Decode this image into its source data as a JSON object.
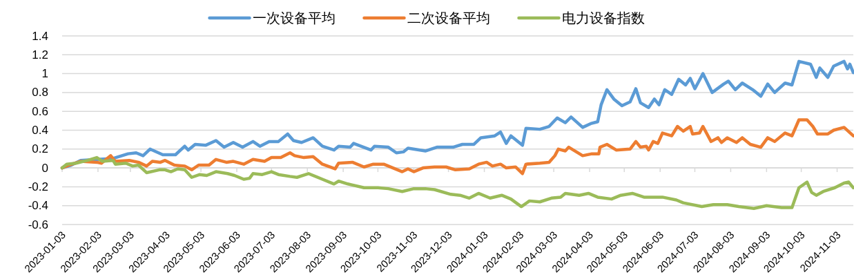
{
  "chart_data": {
    "type": "line",
    "ylim": [
      -0.6,
      1.4
    ],
    "yticks": [
      -0.6,
      -0.4,
      -0.2,
      0,
      0.2,
      0.4,
      0.6,
      0.8,
      1,
      1.2,
      1.4
    ],
    "xlim": [
      "2023-01-03",
      "2024-11-17"
    ],
    "xticks": [
      "2023-01-03",
      "2023-02-03",
      "2023-03-03",
      "2023-04-03",
      "2023-05-03",
      "2023-06-03",
      "2023-07-03",
      "2023-08-03",
      "2023-09-03",
      "2023-10-03",
      "2023-11-03",
      "2023-12-03",
      "2024-01-03",
      "2024-02-03",
      "2024-03-03",
      "2024-04-03",
      "2024-05-03",
      "2024-06-03",
      "2024-07-03",
      "2024-08-03",
      "2024-09-03",
      "2024-10-03",
      "2024-11-03"
    ],
    "grid": "y",
    "legend": "top",
    "line_style": "solid",
    "marker": "none",
    "series": [
      {
        "name": "一次设备平均",
        "color": "#5b9bd5",
        "x": [
          "2023-01-03",
          "2023-01-11",
          "2023-01-19",
          "2023-02-02",
          "2023-02-16",
          "2023-03-01",
          "2023-03-08",
          "2023-03-14",
          "2023-03-20",
          "2023-03-31",
          "2023-04-11",
          "2023-04-19",
          "2023-04-22",
          "2023-04-28",
          "2023-05-07",
          "2023-05-16",
          "2023-05-23",
          "2023-05-31",
          "2023-06-08",
          "2023-06-17",
          "2023-06-23",
          "2023-07-01",
          "2023-07-09",
          "2023-07-17",
          "2023-07-22",
          "2023-07-29",
          "2023-08-08",
          "2023-08-16",
          "2023-08-26",
          "2023-08-30",
          "2023-09-09",
          "2023-09-12",
          "2023-09-27",
          "2023-09-30",
          "2023-10-12",
          "2023-10-19",
          "2023-10-25",
          "2023-10-29",
          "2023-11-13",
          "2023-11-23",
          "2023-12-07",
          "2023-12-15",
          "2023-12-25",
          "2023-12-31",
          "2024-01-12",
          "2024-01-17",
          "2024-01-22",
          "2024-01-26",
          "2024-02-05",
          "2024-02-08",
          "2024-02-20",
          "2024-02-28",
          "2024-03-06",
          "2024-03-13",
          "2024-03-18",
          "2024-03-28",
          "2024-04-04",
          "2024-04-10",
          "2024-04-13",
          "2024-04-18",
          "2024-04-24",
          "2024-05-01",
          "2024-05-08",
          "2024-05-13",
          "2024-05-17",
          "2024-05-24",
          "2024-05-29",
          "2024-06-02",
          "2024-06-07",
          "2024-06-13",
          "2024-06-19",
          "2024-06-25",
          "2024-06-29",
          "2024-07-03",
          "2024-07-10",
          "2024-07-18",
          "2024-07-28",
          "2024-08-01",
          "2024-08-07",
          "2024-08-13",
          "2024-08-22",
          "2024-08-29",
          "2024-09-04",
          "2024-09-10",
          "2024-09-19",
          "2024-09-25",
          "2024-10-01",
          "2024-10-11",
          "2024-10-16",
          "2024-10-19",
          "2024-10-26",
          "2024-10-31",
          "2024-11-09",
          "2024-11-12",
          "2024-11-14",
          "2024-11-17"
        ],
        "values": [
          0,
          0.03,
          0.08,
          0.09,
          0.1,
          0.15,
          0.16,
          0.13,
          0.2,
          0.14,
          0.14,
          0.23,
          0.19,
          0.25,
          0.24,
          0.29,
          0.22,
          0.27,
          0.22,
          0.28,
          0.23,
          0.28,
          0.28,
          0.36,
          0.29,
          0.27,
          0.32,
          0.23,
          0.19,
          0.23,
          0.22,
          0.26,
          0.19,
          0.23,
          0.22,
          0.16,
          0.17,
          0.21,
          0.18,
          0.22,
          0.22,
          0.25,
          0.25,
          0.32,
          0.34,
          0.38,
          0.26,
          0.34,
          0.24,
          0.42,
          0.41,
          0.44,
          0.53,
          0.48,
          0.54,
          0.43,
          0.47,
          0.49,
          0.67,
          0.83,
          0.73,
          0.66,
          0.7,
          0.84,
          0.69,
          0.64,
          0.73,
          0.67,
          0.83,
          0.78,
          0.94,
          0.88,
          0.95,
          0.84,
          1.0,
          0.8,
          0.89,
          0.92,
          0.83,
          0.9,
          0.83,
          0.76,
          0.89,
          0.8,
          0.9,
          0.88,
          1.13,
          1.1,
          0.96,
          1.06,
          0.96,
          1.08,
          1.13,
          1.05,
          1.1,
          1.01
        ]
      },
      {
        "name": "二次设备平均",
        "color": "#ed7d31",
        "x": [
          "2023-01-03",
          "2023-01-09",
          "2023-01-19",
          "2023-02-02",
          "2023-02-06",
          "2023-02-14",
          "2023-02-18",
          "2023-03-02",
          "2023-03-10",
          "2023-03-17",
          "2023-03-22",
          "2023-03-29",
          "2023-04-02",
          "2023-04-10",
          "2023-04-19",
          "2023-04-25",
          "2023-05-01",
          "2023-05-10",
          "2023-05-16",
          "2023-05-25",
          "2023-05-31",
          "2023-06-09",
          "2023-06-17",
          "2023-06-27",
          "2023-07-03",
          "2023-07-11",
          "2023-07-19",
          "2023-07-23",
          "2023-07-31",
          "2023-08-08",
          "2023-08-16",
          "2023-08-27",
          "2023-08-30",
          "2023-09-11",
          "2023-09-21",
          "2023-09-29",
          "2023-10-08",
          "2023-10-16",
          "2023-10-24",
          "2023-10-29",
          "2023-11-03",
          "2023-11-11",
          "2023-11-21",
          "2023-12-01",
          "2023-12-09",
          "2023-12-21",
          "2023-12-29",
          "2024-01-05",
          "2024-01-10",
          "2024-01-17",
          "2024-01-22",
          "2024-01-30",
          "2024-02-05",
          "2024-02-08",
          "2024-02-20",
          "2024-02-28",
          "2024-03-04",
          "2024-03-07",
          "2024-03-13",
          "2024-03-16",
          "2024-03-28",
          "2024-04-05",
          "2024-04-11",
          "2024-04-12",
          "2024-04-18",
          "2024-04-26",
          "2024-05-08",
          "2024-05-13",
          "2024-05-17",
          "2024-05-22",
          "2024-05-24",
          "2024-05-28",
          "2024-06-01",
          "2024-06-05",
          "2024-06-13",
          "2024-06-18",
          "2024-06-23",
          "2024-06-29",
          "2024-07-01",
          "2024-07-07",
          "2024-07-10",
          "2024-07-17",
          "2024-07-23",
          "2024-07-26",
          "2024-07-31",
          "2024-08-08",
          "2024-08-13",
          "2024-08-20",
          "2024-08-29",
          "2024-09-04",
          "2024-09-10",
          "2024-09-19",
          "2024-09-25",
          "2024-10-01",
          "2024-10-08",
          "2024-10-13",
          "2024-10-17",
          "2024-10-26",
          "2024-10-31",
          "2024-11-09",
          "2024-11-17"
        ],
        "values": [
          0,
          0.03,
          0.07,
          0.06,
          0.05,
          0.13,
          0.07,
          0.08,
          0.06,
          0.02,
          0.07,
          0.06,
          0.08,
          0.03,
          0.02,
          -0.02,
          0.03,
          0.03,
          0.09,
          0.06,
          0.07,
          0.04,
          0.09,
          0.07,
          0.11,
          0.11,
          0.16,
          0.13,
          0.11,
          0.12,
          0.04,
          -0.01,
          0.05,
          0.06,
          0.01,
          0.04,
          0.04,
          0.0,
          -0.04,
          -0.01,
          -0.04,
          0.0,
          0.01,
          0.01,
          -0.02,
          -0.01,
          0.04,
          0.06,
          0.02,
          0.04,
          0.0,
          0.01,
          -0.06,
          0.04,
          0.05,
          0.06,
          0.13,
          0.2,
          0.18,
          0.22,
          0.13,
          0.15,
          0.15,
          0.22,
          0.25,
          0.19,
          0.2,
          0.28,
          0.22,
          0.23,
          0.19,
          0.28,
          0.26,
          0.37,
          0.34,
          0.44,
          0.39,
          0.44,
          0.36,
          0.37,
          0.44,
          0.28,
          0.32,
          0.27,
          0.32,
          0.27,
          0.32,
          0.25,
          0.22,
          0.32,
          0.28,
          0.37,
          0.34,
          0.51,
          0.51,
          0.44,
          0.36,
          0.36,
          0.4,
          0.43,
          0.34
        ]
      },
      {
        "name": "电力设备指数",
        "color": "#9bbb59",
        "x": [
          "2023-01-03",
          "2023-01-07",
          "2023-01-15",
          "2023-01-25",
          "2023-02-02",
          "2023-02-07",
          "2023-02-16",
          "2023-02-18",
          "2023-02-27",
          "2023-03-05",
          "2023-03-10",
          "2023-03-17",
          "2023-03-28",
          "2023-04-02",
          "2023-04-07",
          "2023-04-13",
          "2023-04-19",
          "2023-04-25",
          "2023-05-02",
          "2023-05-08",
          "2023-05-16",
          "2023-05-26",
          "2023-06-01",
          "2023-06-09",
          "2023-06-14",
          "2023-06-17",
          "2023-06-25",
          "2023-07-03",
          "2023-07-09",
          "2023-07-19",
          "2023-07-25",
          "2023-08-04",
          "2023-08-16",
          "2023-08-26",
          "2023-08-30",
          "2023-09-07",
          "2023-09-21",
          "2023-10-03",
          "2023-10-12",
          "2023-10-24",
          "2023-11-03",
          "2023-11-13",
          "2023-11-21",
          "2023-12-05",
          "2023-12-13",
          "2023-12-21",
          "2023-12-29",
          "2024-01-08",
          "2024-01-18",
          "2024-01-26",
          "2024-02-04",
          "2024-02-11",
          "2024-02-20",
          "2024-03-01",
          "2024-03-09",
          "2024-03-13",
          "2024-03-25",
          "2024-04-02",
          "2024-04-10",
          "2024-04-22",
          "2024-04-30",
          "2024-05-10",
          "2024-05-20",
          "2024-06-05",
          "2024-06-17",
          "2024-06-23",
          "2024-07-09",
          "2024-07-19",
          "2024-07-31",
          "2024-08-10",
          "2024-08-23",
          "2024-09-03",
          "2024-09-16",
          "2024-09-25",
          "2024-10-01",
          "2024-10-08",
          "2024-10-12",
          "2024-10-16",
          "2024-10-22",
          "2024-11-01",
          "2024-11-09",
          "2024-11-13",
          "2024-11-17"
        ],
        "values": [
          0,
          0.04,
          0.05,
          0.08,
          0.11,
          0.07,
          0.08,
          0.04,
          0.05,
          0.02,
          0.03,
          -0.05,
          -0.02,
          -0.02,
          -0.04,
          -0.01,
          -0.02,
          -0.1,
          -0.07,
          -0.08,
          -0.04,
          -0.06,
          -0.08,
          -0.12,
          -0.11,
          -0.06,
          -0.07,
          -0.04,
          -0.07,
          -0.09,
          -0.1,
          -0.06,
          -0.12,
          -0.17,
          -0.14,
          -0.17,
          -0.21,
          -0.21,
          -0.22,
          -0.25,
          -0.22,
          -0.22,
          -0.23,
          -0.28,
          -0.29,
          -0.32,
          -0.27,
          -0.32,
          -0.29,
          -0.33,
          -0.41,
          -0.35,
          -0.36,
          -0.32,
          -0.31,
          -0.27,
          -0.29,
          -0.27,
          -0.31,
          -0.33,
          -0.29,
          -0.27,
          -0.31,
          -0.31,
          -0.34,
          -0.37,
          -0.41,
          -0.39,
          -0.39,
          -0.41,
          -0.43,
          -0.4,
          -0.42,
          -0.42,
          -0.21,
          -0.15,
          -0.26,
          -0.29,
          -0.25,
          -0.21,
          -0.16,
          -0.15,
          -0.21
        ]
      }
    ]
  }
}
